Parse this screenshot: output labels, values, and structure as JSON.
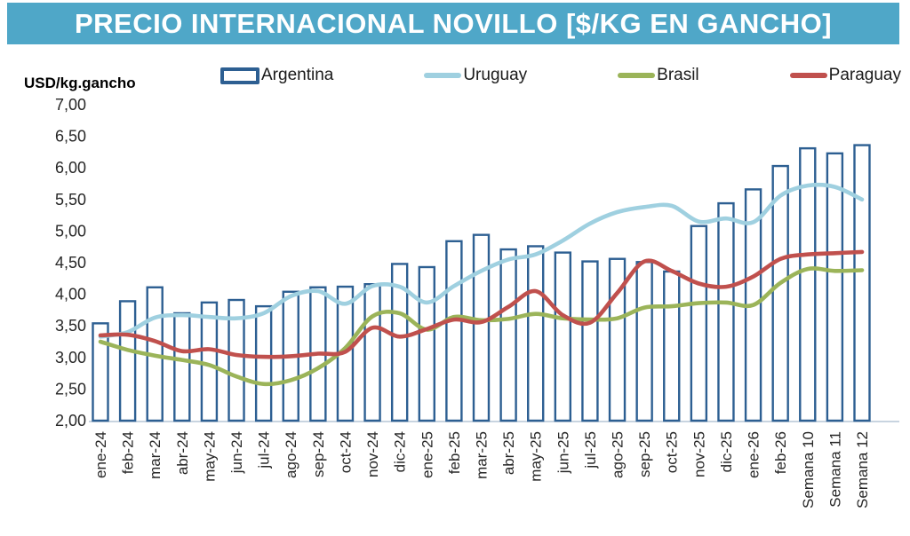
{
  "title": "PRECIO INTERNACIONAL NOVILLO [$/KG EN GANCHO]",
  "y_axis_unit": "USD/kg.gancho",
  "colors": {
    "title_bg": "#4FA7C8",
    "title_text": "#FFFFFF",
    "argentina_outline": "#2D5F92",
    "argentina_fill": "#FFFFFF",
    "uruguay": "#9FD0E0",
    "brasil": "#9BB459",
    "paraguay": "#C0504D",
    "axis_text": "#262626",
    "axis_line": "#C8D4E0"
  },
  "chart_data": {
    "type": "combo",
    "title": "PRECIO INTERNACIONAL NOVILLO [$/KG EN GANCHO]",
    "ylabel": "USD/kg.gancho",
    "ylim": [
      2.0,
      7.0
    ],
    "ytick_step": 0.5,
    "y_ticks": [
      "7,00",
      "6,50",
      "6,00",
      "5,50",
      "5,00",
      "4,50",
      "4,00",
      "3,50",
      "3,00",
      "2,50",
      "2,00"
    ],
    "grid": false,
    "legend_position": "top",
    "categories": [
      "ene-24",
      "feb-24",
      "mar-24",
      "abr-24",
      "may-24",
      "jun-24",
      "jul-24",
      "ago-24",
      "sep-24",
      "oct-24",
      "nov-24",
      "dic-24",
      "ene-25",
      "feb-25",
      "mar-25",
      "abr-25",
      "may-25",
      "jun-25",
      "jul-25",
      "ago-25",
      "sep-25",
      "oct-25",
      "nov-25",
      "dic-25",
      "ene-26",
      "feb-26",
      "Semana 10",
      "Semana 11",
      "Semana 12"
    ],
    "series": [
      {
        "name": "Argentina",
        "type": "bar",
        "values": [
          3.54,
          3.89,
          4.11,
          3.7,
          3.87,
          3.91,
          3.81,
          4.04,
          4.11,
          4.12,
          4.16,
          4.48,
          4.43,
          4.84,
          4.94,
          4.71,
          4.76,
          4.66,
          4.52,
          4.56,
          4.51,
          4.36,
          5.08,
          5.44,
          5.66,
          6.03,
          6.31,
          6.23,
          6.36
        ]
      },
      {
        "name": "Uruguay",
        "type": "line",
        "values": [
          3.33,
          3.4,
          3.63,
          3.67,
          3.64,
          3.62,
          3.7,
          3.97,
          4.05,
          3.85,
          4.13,
          4.12,
          3.87,
          4.13,
          4.37,
          4.55,
          4.63,
          4.85,
          5.12,
          5.3,
          5.38,
          5.4,
          5.15,
          5.2,
          5.14,
          5.56,
          5.72,
          5.7,
          5.5
        ]
      },
      {
        "name": "Brasil",
        "type": "line",
        "values": [
          3.25,
          3.12,
          3.03,
          2.96,
          2.88,
          2.7,
          2.58,
          2.64,
          2.83,
          3.15,
          3.65,
          3.7,
          3.44,
          3.64,
          3.59,
          3.61,
          3.69,
          3.62,
          3.6,
          3.62,
          3.79,
          3.81,
          3.86,
          3.87,
          3.83,
          4.18,
          4.4,
          4.37,
          4.38
        ]
      },
      {
        "name": "Paraguay",
        "type": "line",
        "values": [
          3.35,
          3.36,
          3.26,
          3.1,
          3.13,
          3.04,
          3.01,
          3.02,
          3.06,
          3.09,
          3.47,
          3.33,
          3.45,
          3.6,
          3.56,
          3.8,
          4.05,
          3.67,
          3.55,
          4.02,
          4.52,
          4.37,
          4.17,
          4.12,
          4.28,
          4.56,
          4.63,
          4.65,
          4.67
        ]
      }
    ]
  }
}
